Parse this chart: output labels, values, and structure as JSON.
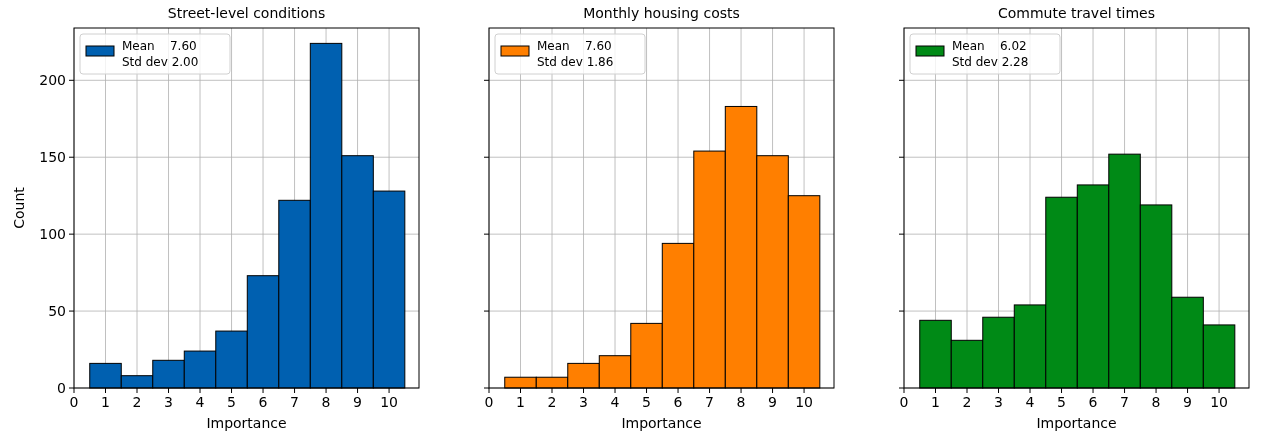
{
  "chart_data": [
    {
      "type": "histogram",
      "title": "Street-level conditions",
      "xlabel": "Importance",
      "ylabel": "Count",
      "bins": [
        0.5,
        1.5,
        2.5,
        3.5,
        4.5,
        5.5,
        6.5,
        7.5,
        8.5,
        9.5,
        10.5
      ],
      "series": [
        {
          "name": "Mean    7.60\nStd dev 2.00",
          "color": "#0060b0",
          "values": [
            16,
            8,
            18,
            24,
            37,
            73,
            122,
            224,
            151,
            128
          ]
        }
      ],
      "xlim": [
        0,
        10.95
      ],
      "xticks": [
        0,
        1,
        2,
        3,
        4,
        5,
        6,
        7,
        8,
        9,
        10
      ],
      "ylim": [
        0,
        234
      ],
      "yticks": [
        0,
        50,
        100,
        150,
        200
      ],
      "grid": true,
      "legend": "top left"
    },
    {
      "type": "histogram",
      "title": "Monthly housing costs",
      "xlabel": "Importance",
      "bins": [
        0.5,
        1.5,
        2.5,
        3.5,
        4.5,
        5.5,
        6.5,
        7.5,
        8.5,
        9.5,
        10.5
      ],
      "series": [
        {
          "name": "Mean    7.60\nStd dev 1.86",
          "color": "#ff7f00",
          "values": [
            7,
            7,
            16,
            21,
            42,
            94,
            154,
            183,
            151,
            125
          ]
        }
      ],
      "xlim": [
        0,
        10.95
      ],
      "xticks": [
        0,
        1,
        2,
        3,
        4,
        5,
        6,
        7,
        8,
        9,
        10
      ],
      "ylim": [
        0,
        234
      ],
      "yticks": [
        0,
        50,
        100,
        150,
        200
      ],
      "grid": true,
      "legend": "top left",
      "tick_labels": "x"
    },
    {
      "type": "histogram",
      "title": "Commute travel times",
      "xlabel": "Importance",
      "bins": [
        0.5,
        1.5,
        2.5,
        3.5,
        4.5,
        5.5,
        6.5,
        7.5,
        8.5,
        9.5,
        10.5
      ],
      "series": [
        {
          "name": "Mean    6.02\nStd dev 2.28",
          "color": "#008a16",
          "values": [
            44,
            31,
            46,
            54,
            124,
            132,
            152,
            119,
            59,
            41
          ]
        }
      ],
      "xlim": [
        0,
        10.95
      ],
      "xticks": [
        0,
        1,
        2,
        3,
        4,
        5,
        6,
        7,
        8,
        9,
        10
      ],
      "ylim": [
        0,
        234
      ],
      "yticks": [
        0,
        50,
        100,
        150,
        200
      ],
      "grid": true,
      "legend": "top left",
      "tick_labels": "x"
    }
  ]
}
